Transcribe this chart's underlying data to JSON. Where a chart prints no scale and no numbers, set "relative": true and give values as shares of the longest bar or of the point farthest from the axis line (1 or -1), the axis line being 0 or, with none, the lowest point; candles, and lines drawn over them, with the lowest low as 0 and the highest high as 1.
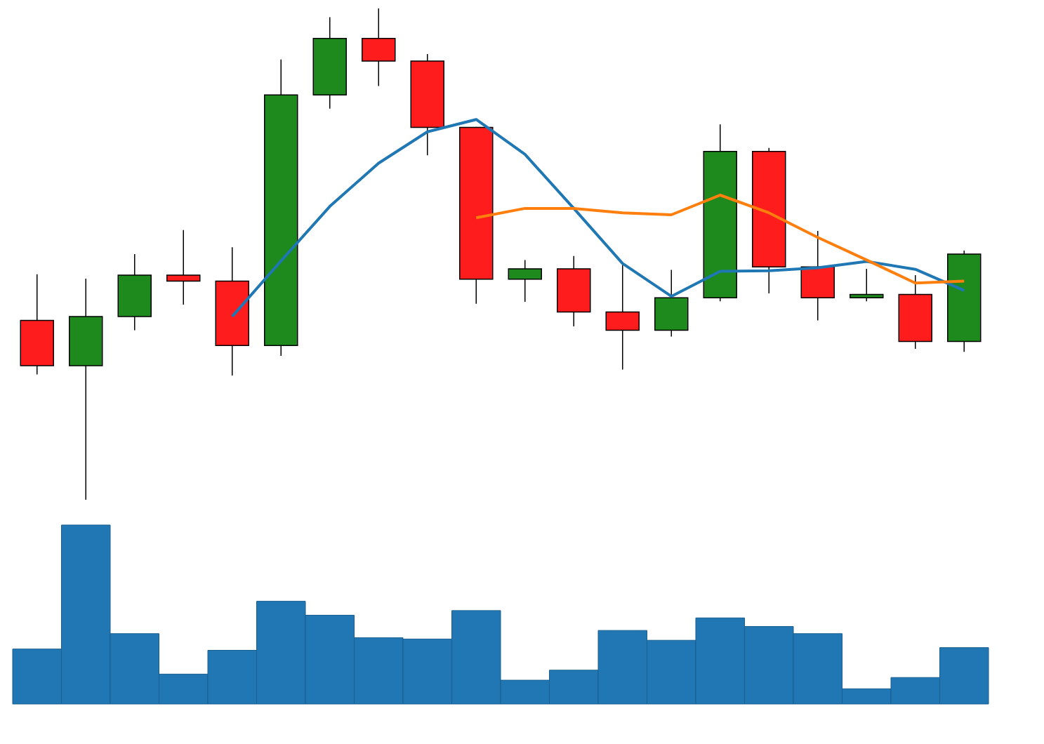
{
  "chart_data": [
    {
      "type": "candlestick",
      "relative": true,
      "categories": [
        null,
        null,
        null,
        null,
        null,
        null,
        null,
        null,
        null,
        null,
        null,
        null,
        null,
        null,
        null,
        null,
        null,
        null,
        null,
        null
      ],
      "ohlc": [
        [
          0.365,
          0.459,
          0.255,
          0.273
        ],
        [
          0.273,
          0.45,
          0.0,
          0.373
        ],
        [
          0.373,
          0.5,
          0.345,
          0.457
        ],
        [
          0.457,
          0.549,
          0.397,
          0.445
        ],
        [
          0.445,
          0.514,
          0.253,
          0.314
        ],
        [
          0.314,
          0.896,
          0.293,
          0.824
        ],
        [
          0.824,
          0.982,
          0.796,
          0.939
        ],
        [
          0.939,
          1.0,
          0.842,
          0.893
        ],
        [
          0.893,
          0.907,
          0.701,
          0.758
        ],
        [
          0.758,
          0.759,
          0.399,
          0.449
        ],
        [
          0.449,
          0.488,
          0.403,
          0.47
        ],
        [
          0.47,
          0.496,
          0.353,
          0.382
        ],
        [
          0.382,
          0.478,
          0.265,
          0.345
        ],
        [
          0.345,
          0.468,
          0.332,
          0.411
        ],
        [
          0.411,
          0.764,
          0.404,
          0.709
        ],
        [
          0.709,
          0.716,
          0.42,
          0.474
        ],
        [
          0.474,
          0.547,
          0.365,
          0.411
        ],
        [
          0.411,
          0.47,
          0.404,
          0.418
        ],
        [
          0.418,
          0.457,
          0.307,
          0.322
        ],
        [
          0.322,
          0.507,
          0.301,
          0.5
        ]
      ],
      "colors": [
        "#ff1c1c",
        "#1e8a1e",
        "#1e8a1e",
        "#ff1c1c",
        "#ff1c1c",
        "#1e8a1e",
        "#1e8a1e",
        "#ff1c1c",
        "#ff1c1c",
        "#ff1c1c",
        "#1e8a1e",
        "#ff1c1c",
        "#ff1c1c",
        "#1e8a1e",
        "#1e8a1e",
        "#ff1c1c",
        "#ff1c1c",
        "#1e8a1e",
        "#ff1c1c",
        "#1e8a1e"
      ],
      "series": [
        {
          "type": "line",
          "color": "#1f77b4",
          "values": [
            null,
            null,
            null,
            null,
            0.373,
            0.486,
            0.597,
            0.685,
            0.749,
            0.774,
            0.703,
            0.593,
            0.481,
            0.414,
            0.465,
            0.466,
            0.472,
            0.485,
            0.469,
            0.426
          ]
        },
        {
          "type": "line",
          "color": "#ff7f0e",
          "values": [
            null,
            null,
            null,
            null,
            null,
            null,
            null,
            null,
            null,
            0.574,
            0.593,
            0.593,
            0.584,
            0.58,
            0.62,
            0.584,
            0.534,
            0.488,
            0.441,
            0.445
          ]
        }
      ]
    },
    {
      "type": "bar",
      "relative": true,
      "categories": [
        null,
        null,
        null,
        null,
        null,
        null,
        null,
        null,
        null,
        null,
        null,
        null,
        null,
        null,
        null,
        null,
        null,
        null,
        null,
        null
      ],
      "color": "#2077b4",
      "values": [
        0.307,
        1,
        0.393,
        0.167,
        0.3,
        0.574,
        0.496,
        0.37,
        0.363,
        0.522,
        0.133,
        0.189,
        0.411,
        0.356,
        0.481,
        0.433,
        0.393,
        0.085,
        0.148,
        0.315
      ]
    }
  ]
}
